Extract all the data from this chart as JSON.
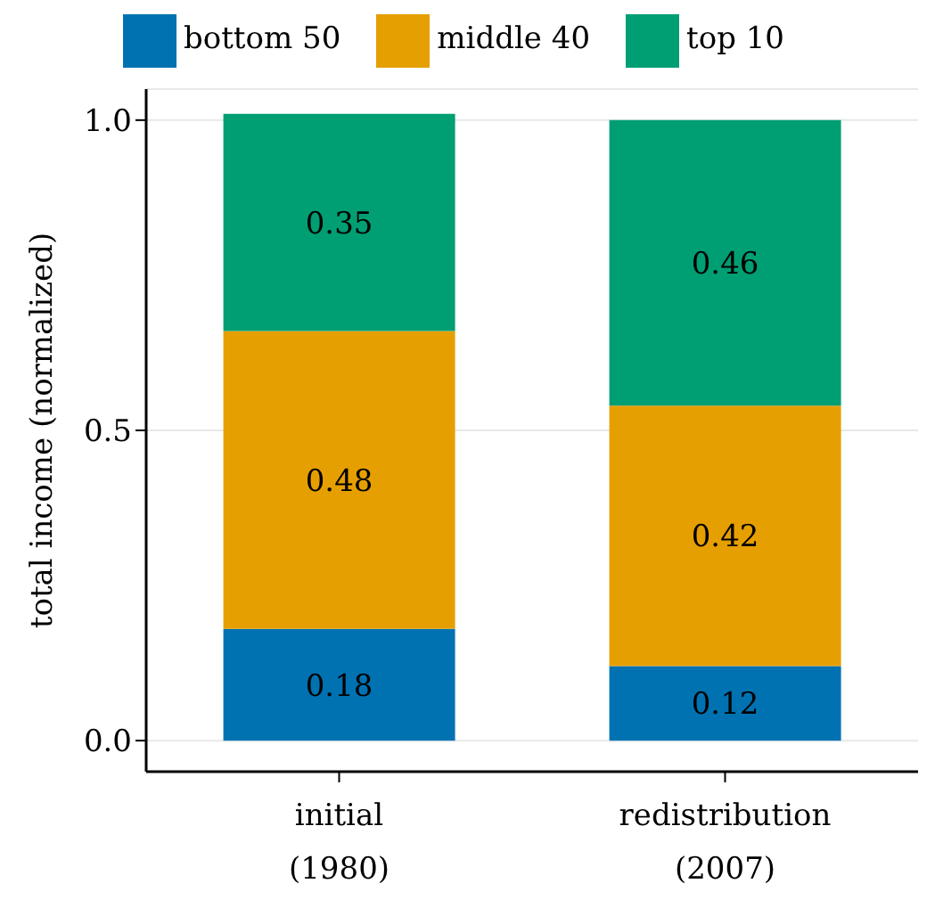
{
  "chart_data": {
    "type": "bar",
    "stacked": true,
    "ylabel": "total income (normalized)",
    "categories": [
      "initial\n(1980)",
      "redistribution\n(2007)"
    ],
    "series": [
      {
        "name": "bottom 50",
        "color": "#0072b2",
        "values": [
          0.18,
          0.12
        ]
      },
      {
        "name": "middle 40",
        "color": "#e69f00",
        "values": [
          0.48,
          0.42
        ]
      },
      {
        "name": "top 10",
        "color": "#009e73",
        "values": [
          0.35,
          0.46
        ]
      }
    ],
    "ylim": [
      -0.05,
      1.05
    ],
    "yticks": [
      {
        "value": 0,
        "label": "0.0"
      },
      {
        "value": 0.5,
        "label": "0.5"
      },
      {
        "value": 1,
        "label": "1.0"
      }
    ],
    "grid": "y",
    "legend": "top",
    "data_labels": true
  }
}
